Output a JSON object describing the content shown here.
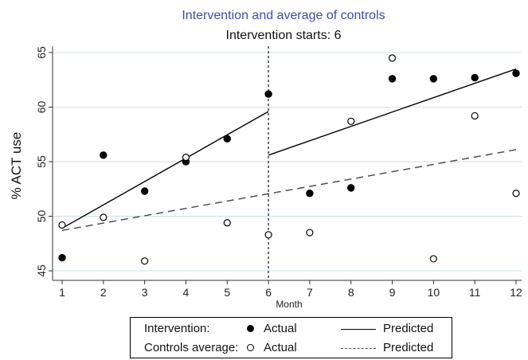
{
  "chart_data": {
    "type": "scatter",
    "title": "Intervention and average of controls",
    "subtitle": "Intervention starts: 6",
    "xlabel": "Month",
    "ylabel": "% ACT use",
    "xlim": [
      1,
      12
    ],
    "ylim": [
      45,
      65
    ],
    "x_ticks": [
      1,
      2,
      3,
      4,
      5,
      6,
      7,
      8,
      9,
      10,
      11,
      12
    ],
    "y_ticks": [
      45,
      50,
      55,
      60,
      65
    ],
    "grid": true,
    "intervention_start": 6,
    "series": [
      {
        "name": "Actual",
        "group": "Intervention",
        "kind": "points",
        "marker": "filled",
        "x": [
          1,
          2,
          3,
          4,
          5,
          6,
          7,
          8,
          9,
          10,
          11,
          12
        ],
        "y": [
          46.2,
          55.6,
          52.3,
          55.0,
          57.1,
          61.2,
          52.1,
          52.6,
          62.6,
          62.6,
          62.7,
          63.1
        ]
      },
      {
        "name": "Actual",
        "group": "Controls average",
        "kind": "points",
        "marker": "hollow",
        "x": [
          1,
          2,
          3,
          4,
          5,
          6,
          7,
          8,
          9,
          10,
          11,
          12
        ],
        "y": [
          49.2,
          49.9,
          45.9,
          55.4,
          49.4,
          48.3,
          48.5,
          58.7,
          64.5,
          46.1,
          59.2,
          52.1
        ]
      },
      {
        "name": "Predicted",
        "group": "Intervention",
        "kind": "line",
        "style": "solid",
        "segments": [
          {
            "x": [
              1,
              6
            ],
            "y": [
              48.9,
              59.6
            ]
          },
          {
            "x": [
              6,
              12
            ],
            "y": [
              55.6,
              63.5
            ]
          }
        ]
      },
      {
        "name": "Predicted",
        "group": "Controls average",
        "kind": "line",
        "style": "dashed",
        "segments": [
          {
            "x": [
              1,
              12
            ],
            "y": [
              48.7,
              56.1
            ]
          }
        ]
      }
    ],
    "colors": {
      "title": "#3a4fa8",
      "grid": "#cfe0e6",
      "marks": "#000000"
    },
    "legend": {
      "placement": "bottom",
      "rows": [
        {
          "label": "Intervention:",
          "actual": "Actual",
          "predicted": "Predicted"
        },
        {
          "label": "Controls average:",
          "actual": "Actual",
          "predicted": "Predicted"
        }
      ]
    }
  }
}
